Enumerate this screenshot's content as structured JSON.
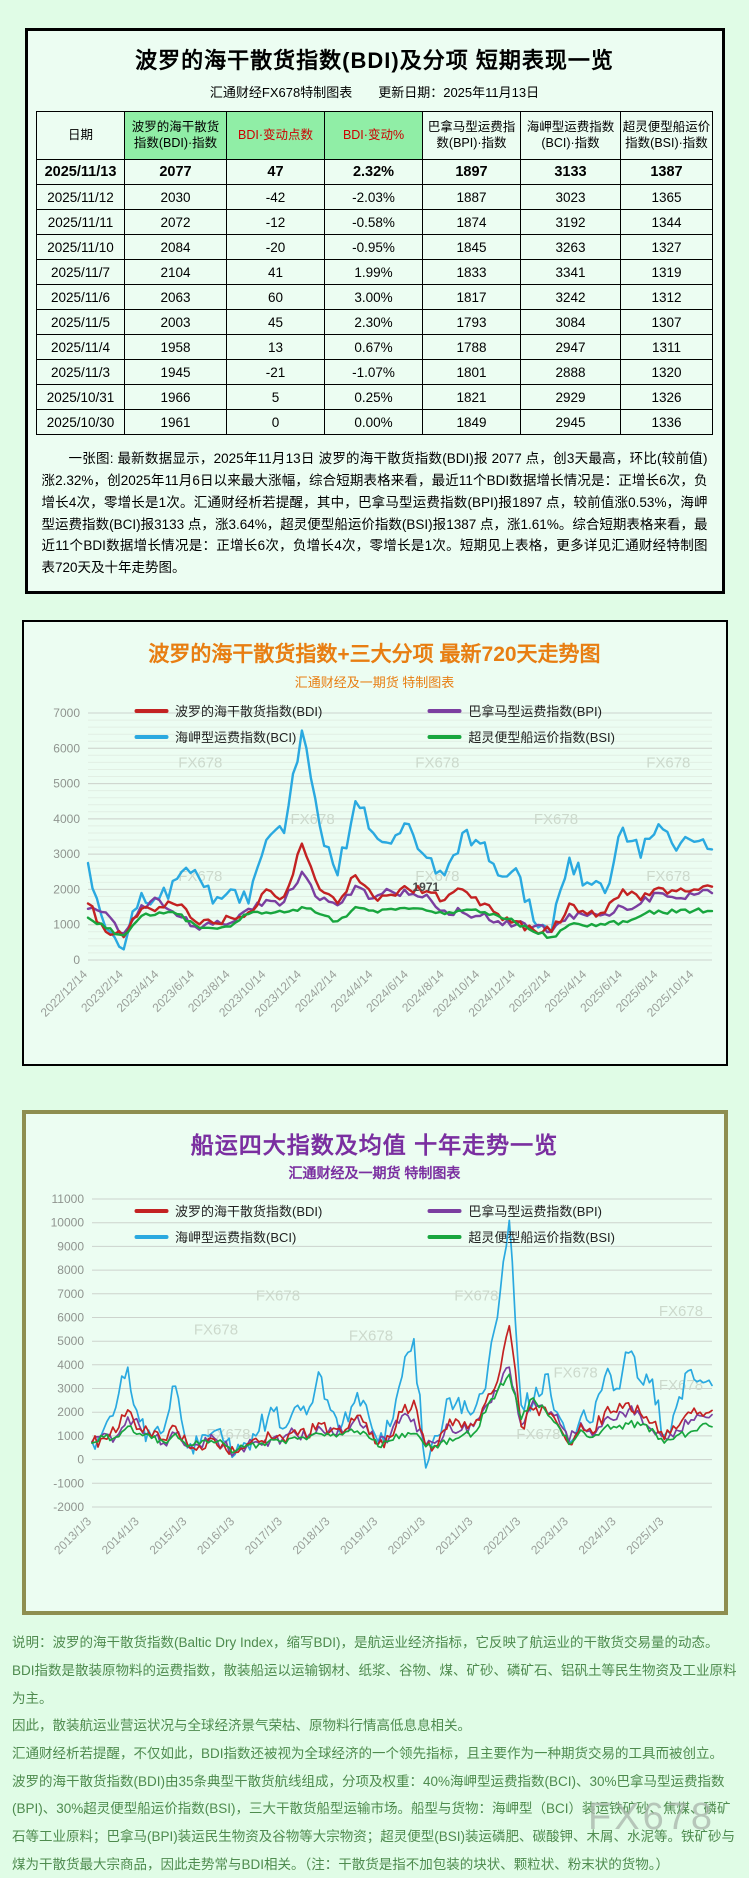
{
  "page": {
    "watermark": "FX678"
  },
  "colors": {
    "bdi_red": "#c32222",
    "bpi_purple": "#7b3fa0",
    "bci_blue": "#2aa9e0",
    "bsi_green": "#18a63e",
    "title_720_orange": "#e87e12",
    "title_10y_purple": "#7a2fa0",
    "footer_green": "#4e8b4e",
    "header_highlight_green": "#90eea6",
    "header_red": "#cc0000"
  },
  "table_panel": {
    "title": "波罗的海干散货指数(BDI)及分项  短期表现一览",
    "subtitle": "汇通财经FX678特制图表　　更新日期：2025年11月13日",
    "note": "一张图: 最新数据显示，2025年11月13日 波罗的海干散货指数(BDI)报 2077 点，创3天最高，环比(较前值)涨2.32%，创2025年11月6日以来最大涨幅，综合短期表格来看，最近11个BDI数据增长情况是：正增长6次，负增长4次，零增长是1次。汇通财经析若提醒，其中，巴拿马型运费指数(BPI)报1897 点，较前值涨0.53%，海岬型运费指数(BCI)报3133 点，涨3.64%，超灵便型船运价指数(BSI)报1387 点，涨1.61%。综合短期表格来看，最近11个BDI数据增长情况是：正增长6次，负增长4次，零增长是1次。短期见上表格，更多详见汇通财经特制图表720天及十年走势图。"
  },
  "footer": {
    "lines": [
      "说明：波罗的海干散货指数(Baltic Dry Index，缩写BDI)，是航运业经济指标，它反映了航运业的干散货交易量的动态。",
      "BDI指数是散装原物料的运费指数，散装船运以运输钢材、纸浆、谷物、煤、矿砂、磷矿石、铝矾土等民生物资及工业原料为主。",
      "因此，散装航运业营运状况与全球经济景气荣枯、原物料行情高低息息相关。",
      "汇通财经析若提醒，不仅如此，BDI指数还被视为全球经济的一个领先指标，且主要作为一种期货交易的工具而被创立。",
      "波罗的海干散货指数(BDI)由35条典型干散货航线组成，分项及权重：40%海岬型运费指数(BCI)、30%巴拿马型运费指数(BPI)、30%超灵便型船运价指数(BSI)，三大干散货船型运输市场。船型与货物：海岬型（BCI）装运铁矿砂、焦煤、磷矿石等工业原料；巴拿马(BPI)装运民生物资及谷物等大宗物资；超灵便型(BSI)装运磷肥、碳酸钾、木屑、水泥等。铁矿砂与煤为干散货最大宗商品，因此走势常与BDI相关。（注：干散货是指不加包装的块状、颗粒状、粉末状的货物。）"
    ]
  },
  "chart_data": [
    {
      "type": "table",
      "title": "波罗的海干散货指数(BDI)及分项 短期表现一览",
      "columns": [
        "日期",
        "波罗的海干散货指数(BDI)·指数",
        "BDI·变动点数",
        "BDI·变动%",
        "巴拿马型运费指数(BPI)·指数",
        "海岬型运费指数(BCI)·指数",
        "超灵便型船运价指数(BSI)·指数"
      ],
      "rows": [
        [
          "2025/11/13",
          "2077",
          "47",
          "2.32%",
          "1897",
          "3133",
          "1387"
        ],
        [
          "2025/11/12",
          "2030",
          "-42",
          "-2.03%",
          "1887",
          "3023",
          "1365"
        ],
        [
          "2025/11/11",
          "2072",
          "-12",
          "-0.58%",
          "1874",
          "3192",
          "1344"
        ],
        [
          "2025/11/10",
          "2084",
          "-20",
          "-0.95%",
          "1845",
          "3263",
          "1327"
        ],
        [
          "2025/11/7",
          "2104",
          "41",
          "1.99%",
          "1833",
          "3341",
          "1319"
        ],
        [
          "2025/11/6",
          "2063",
          "60",
          "3.00%",
          "1817",
          "3242",
          "1312"
        ],
        [
          "2025/11/5",
          "2003",
          "45",
          "2.30%",
          "1793",
          "3084",
          "1307"
        ],
        [
          "2025/11/4",
          "1958",
          "13",
          "0.67%",
          "1788",
          "2947",
          "1311"
        ],
        [
          "2025/11/3",
          "1945",
          "-21",
          "-1.07%",
          "1801",
          "2888",
          "1320"
        ],
        [
          "2025/10/31",
          "1966",
          "5",
          "0.25%",
          "1821",
          "2929",
          "1326"
        ],
        [
          "2025/10/30",
          "1961",
          "0",
          "0.00%",
          "1849",
          "2945",
          "1336"
        ]
      ]
    },
    {
      "type": "line",
      "title": "波罗的海干散货指数+三大分项  最新720天走势图",
      "subtitle": "汇通财经及一期货  特制图表",
      "ylim": [
        0,
        7000
      ],
      "ytick_step": 1000,
      "minor_step": 200,
      "grid": true,
      "legend_position": "top-inside",
      "x_labels": [
        "2022/12/14",
        "2023/2/14",
        "2023/4/14",
        "2023/6/14",
        "2023/8/14",
        "2023/10/14",
        "2023/12/14",
        "2024/2/14",
        "2024/4/14",
        "2024/6/14",
        "2024/8/14",
        "2024/10/14",
        "2024/12/14",
        "2025/2/14",
        "2025/4/14",
        "2025/6/14",
        "2025/8/14",
        "2025/10/14"
      ],
      "label_every": 2,
      "annotation": {
        "text": "1971",
        "xf": 0.52,
        "value": 1950
      },
      "watermarks": [
        [
          0.18,
          0.22
        ],
        [
          0.56,
          0.22
        ],
        [
          0.93,
          0.22
        ],
        [
          0.36,
          0.45
        ],
        [
          0.75,
          0.45
        ],
        [
          0.18,
          0.68
        ],
        [
          0.56,
          0.68
        ],
        [
          0.93,
          0.68
        ]
      ],
      "draw_order": [
        2,
        1,
        0,
        3
      ],
      "series": [
        {
          "name": "波罗的海干散货指数(BDI)",
          "color": "#c32222",
          "jitter": 140,
          "values": [
            1600,
            800,
            650,
            1450,
            1500,
            1550,
            1100,
            1050,
            1200,
            1350,
            2000,
            1800,
            3300,
            2000,
            1600,
            2400,
            1800,
            1850,
            2000,
            1950,
            1700,
            2000,
            1550,
            1300,
            1100,
            850,
            800,
            1600,
            1300,
            1350,
            2000,
            1700,
            2050,
            1950,
            2000,
            2077
          ]
        },
        {
          "name": "巴拿马型运费指数(BPI)",
          "color": "#7b3fa0",
          "jitter": 120,
          "values": [
            1450,
            1350,
            750,
            1550,
            1700,
            1250,
            950,
            1000,
            1050,
            1450,
            1700,
            1650,
            2500,
            1700,
            1550,
            2100,
            1750,
            1950,
            1850,
            1850,
            1400,
            1350,
            1250,
            1100,
            1000,
            950,
            800,
            1300,
            1250,
            1300,
            1500,
            1600,
            1900,
            1750,
            1850,
            1897
          ]
        },
        {
          "name": "海岬型运费指数(BCI)",
          "color": "#2aa9e0",
          "jitter": 300,
          "values": [
            2750,
            900,
            300,
            1900,
            1750,
            2300,
            2550,
            1600,
            2000,
            1600,
            3400,
            3600,
            6500,
            3800,
            2400,
            4500,
            3600,
            3300,
            3850,
            2900,
            2400,
            3600,
            3300,
            2400,
            2600,
            1100,
            800,
            2900,
            2200,
            1900,
            3750,
            2900,
            3850,
            3100,
            3350,
            3133
          ]
        },
        {
          "name": "超灵便型船运价指数(BSI)",
          "color": "#18a63e",
          "jitter": 70,
          "values": [
            1200,
            900,
            700,
            1250,
            1350,
            1300,
            1000,
            900,
            950,
            1300,
            1350,
            1350,
            1500,
            1300,
            1100,
            1500,
            1400,
            1450,
            1450,
            1400,
            1300,
            1400,
            1350,
            1250,
            1050,
            800,
            650,
            1000,
            950,
            1000,
            1100,
            1250,
            1400,
            1350,
            1400,
            1387
          ]
        }
      ]
    },
    {
      "type": "line",
      "title": "船运四大指数及均值 十年走势一览",
      "subtitle": "汇通财经及一期货 特制图表",
      "ylim": [
        -2000,
        11000
      ],
      "ytick_step": 1000,
      "grid": true,
      "legend_position": "top-inside",
      "x_labels": [
        "2013/1/3",
        "2014/1/3",
        "2015/1/3",
        "2016/1/3",
        "2017/1/3",
        "2018/1/3",
        "2019/1/3",
        "2020/1/3",
        "2021/1/3",
        "2022/1/3",
        "2023/1/3",
        "2024/1/3",
        "2025/1/3"
      ],
      "label_every": 4,
      "watermarks": [
        [
          0.3,
          0.33
        ],
        [
          0.62,
          0.33
        ],
        [
          0.95,
          0.38
        ],
        [
          0.2,
          0.44
        ],
        [
          0.45,
          0.46
        ],
        [
          0.78,
          0.58
        ],
        [
          0.22,
          0.78
        ],
        [
          0.72,
          0.78
        ],
        [
          0.95,
          0.62
        ]
      ],
      "draw_order": [
        2,
        1,
        0,
        3
      ],
      "series": [
        {
          "name": "波罗的海干散货指数(BDI)",
          "color": "#c32222",
          "jitter": 300,
          "values": [
            700,
            900,
            1150,
            2100,
            1300,
            950,
            850,
            1400,
            650,
            580,
            900,
            700,
            300,
            650,
            750,
            950,
            900,
            1250,
            950,
            1550,
            1200,
            1050,
            1650,
            1550,
            650,
            950,
            2000,
            2500,
            550,
            600,
            1700,
            1350,
            1450,
            2400,
            3300,
            5650,
            1400,
            2100,
            2200,
            1550,
            650,
            1500,
            1100,
            2000,
            2000,
            2400,
            1950,
            1550,
            850,
            1300,
            2000,
            2000,
            2077
          ]
        },
        {
          "name": "巴拿马型运费指数(BPI)",
          "color": "#7b3fa0",
          "jitter": 260,
          "values": [
            750,
            1100,
            950,
            1800,
            1400,
            950,
            700,
            1100,
            550,
            600,
            1050,
            600,
            300,
            600,
            700,
            850,
            900,
            1150,
            900,
            1400,
            1350,
            1150,
            1650,
            1450,
            650,
            1000,
            1850,
            1700,
            600,
            800,
            1450,
            1250,
            1400,
            2250,
            2900,
            3900,
            1450,
            2500,
            2100,
            1900,
            750,
            1550,
            1000,
            1700,
            1700,
            2100,
            1850,
            1250,
            950,
            1250,
            1500,
            1850,
            1897
          ]
        },
        {
          "name": "海岬型运费指数(BCI)",
          "color": "#2aa9e0",
          "jitter": 520,
          "values": [
            750,
            1300,
            2200,
            3900,
            1600,
            950,
            1200,
            3100,
            500,
            600,
            1100,
            800,
            220,
            650,
            1200,
            2200,
            1300,
            2200,
            1900,
            3700,
            2100,
            1500,
            2400,
            2300,
            750,
            1400,
            3500,
            5100,
            -350,
            1000,
            2600,
            1950,
            2000,
            3000,
            6000,
            10100,
            2300,
            2400,
            3600,
            2000,
            700,
            1800,
            1600,
            3500,
            3000,
            4500,
            3300,
            3400,
            1000,
            2200,
            3750,
            3350,
            3133
          ]
        },
        {
          "name": "超灵便型船运价指数(BSI)",
          "color": "#18a63e",
          "jitter": 160,
          "values": [
            700,
            950,
            950,
            1400,
            1100,
            900,
            750,
            1100,
            550,
            650,
            800,
            700,
            350,
            600,
            650,
            850,
            800,
            950,
            850,
            1100,
            1000,
            1050,
            1150,
            1100,
            550,
            800,
            1100,
            1100,
            550,
            500,
            900,
            1000,
            1100,
            2000,
            2900,
            3600,
            1700,
            2600,
            2100,
            1500,
            650,
            1250,
            950,
            1350,
            1350,
            1500,
            1450,
            1300,
            700,
            1000,
            1100,
            1400,
            1387
          ]
        }
      ]
    }
  ]
}
